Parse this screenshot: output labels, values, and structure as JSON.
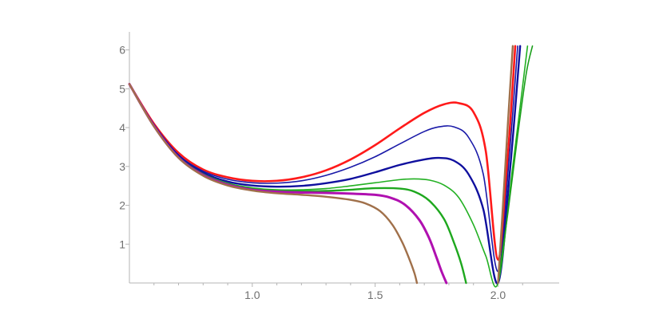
{
  "chart_data": {
    "type": "line",
    "title": "",
    "xlabel": "",
    "ylabel": "",
    "xlim": [
      0.5,
      2.2
    ],
    "ylim": [
      0,
      6.3
    ],
    "x_ticks": [
      1.0,
      1.5,
      2.0
    ],
    "x_tick_labels": [
      "1.0",
      "1.5",
      "2.0"
    ],
    "y_ticks": [
      1,
      2,
      3,
      4,
      5,
      6
    ],
    "y_tick_labels": [
      "1",
      "2",
      "3",
      "4",
      "5",
      "6"
    ],
    "grid": false,
    "legend": "none",
    "series": [
      {
        "color": "#ff1a1a",
        "width": 2.6,
        "x": [
          0.5,
          0.6,
          0.7,
          0.8,
          0.9,
          1.0,
          1.1,
          1.2,
          1.3,
          1.4,
          1.5,
          1.6,
          1.7,
          1.78,
          1.84,
          1.9,
          1.95,
          2.0,
          2.04,
          2.07
        ],
        "y": [
          5.12,
          4.1,
          3.35,
          2.92,
          2.72,
          2.63,
          2.63,
          2.72,
          2.9,
          3.18,
          3.55,
          3.98,
          4.38,
          4.6,
          4.63,
          4.4,
          3.4,
          0.6,
          3.3,
          6.1
        ]
      },
      {
        "color": "#1a1aa8",
        "width": 1.6,
        "x": [
          0.5,
          0.6,
          0.7,
          0.8,
          0.9,
          1.0,
          1.1,
          1.2,
          1.3,
          1.4,
          1.5,
          1.6,
          1.7,
          1.76,
          1.82,
          1.88,
          1.94,
          2.0,
          2.045,
          2.08
        ],
        "y": [
          5.12,
          4.08,
          3.3,
          2.88,
          2.67,
          2.58,
          2.57,
          2.63,
          2.77,
          2.98,
          3.25,
          3.58,
          3.9,
          4.02,
          4.02,
          3.75,
          2.8,
          0.3,
          3.2,
          6.1
        ]
      },
      {
        "color": "#0f0f9e",
        "width": 2.4,
        "x": [
          0.5,
          0.6,
          0.7,
          0.8,
          0.9,
          1.0,
          1.1,
          1.2,
          1.3,
          1.4,
          1.5,
          1.6,
          1.7,
          1.76,
          1.82,
          1.88,
          1.94,
          2.0,
          2.05,
          2.09
        ],
        "y": [
          5.12,
          4.06,
          3.27,
          2.84,
          2.61,
          2.51,
          2.48,
          2.5,
          2.57,
          2.68,
          2.85,
          3.04,
          3.18,
          3.22,
          3.15,
          2.8,
          1.9,
          0.0,
          3.0,
          6.1
        ]
      },
      {
        "color": "#22b022",
        "width": 1.6,
        "x": [
          0.5,
          0.6,
          0.7,
          0.8,
          0.9,
          1.0,
          1.1,
          1.2,
          1.3,
          1.4,
          1.5,
          1.6,
          1.66,
          1.72,
          1.78,
          1.84,
          1.9,
          1.95,
          2.0,
          2.06,
          2.12
        ],
        "y": [
          5.12,
          4.05,
          3.25,
          2.81,
          2.57,
          2.45,
          2.4,
          2.4,
          2.43,
          2.5,
          2.58,
          2.66,
          2.68,
          2.65,
          2.52,
          2.2,
          1.5,
          0.7,
          0.0,
          3.0,
          6.1
        ]
      },
      {
        "color": "#1ea81e",
        "width": 2.4,
        "x": [
          0.5,
          0.6,
          0.7,
          0.8,
          0.9,
          1.0,
          1.1,
          1.2,
          1.3,
          1.4,
          1.5,
          1.6,
          1.66,
          1.72,
          1.78,
          1.82,
          1.85,
          1.87
        ],
        "y": [
          5.12,
          4.04,
          3.24,
          2.79,
          2.55,
          2.42,
          2.37,
          2.36,
          2.37,
          2.4,
          2.44,
          2.43,
          2.35,
          2.12,
          1.65,
          1.05,
          0.5,
          0.0
        ]
      },
      {
        "color": "#b010b0",
        "width": 3.0,
        "x": [
          0.5,
          0.6,
          0.7,
          0.8,
          0.9,
          1.0,
          1.1,
          1.2,
          1.3,
          1.4,
          1.5,
          1.56,
          1.62,
          1.68,
          1.72,
          1.75,
          1.77,
          1.79
        ],
        "y": [
          5.12,
          4.04,
          3.23,
          2.78,
          2.53,
          2.4,
          2.35,
          2.33,
          2.32,
          2.3,
          2.27,
          2.2,
          2.02,
          1.62,
          1.15,
          0.65,
          0.3,
          0.0
        ]
      },
      {
        "color": "#1a9e1a",
        "width": 1.6,
        "x": [
          2.0,
          2.04,
          2.08,
          2.115,
          2.14
        ],
        "y": [
          0.0,
          1.8,
          3.8,
          5.4,
          6.1
        ]
      },
      {
        "color": "#a0704a",
        "width": 2.4,
        "x": [
          0.5,
          0.6,
          0.7,
          0.8,
          0.9,
          1.0,
          1.1,
          1.2,
          1.3,
          1.4,
          1.46,
          1.52,
          1.57,
          1.61,
          1.64,
          1.66,
          1.67
        ],
        "y": [
          5.12,
          4.03,
          3.22,
          2.76,
          2.51,
          2.38,
          2.31,
          2.27,
          2.22,
          2.14,
          2.05,
          1.85,
          1.5,
          1.05,
          0.6,
          0.25,
          0.0
        ]
      },
      {
        "color": "#a0704a",
        "width": 2.4,
        "x": [
          2.0,
          2.02,
          2.04,
          2.06
        ],
        "y": [
          0.0,
          2.0,
          4.1,
          6.1
        ]
      }
    ]
  }
}
